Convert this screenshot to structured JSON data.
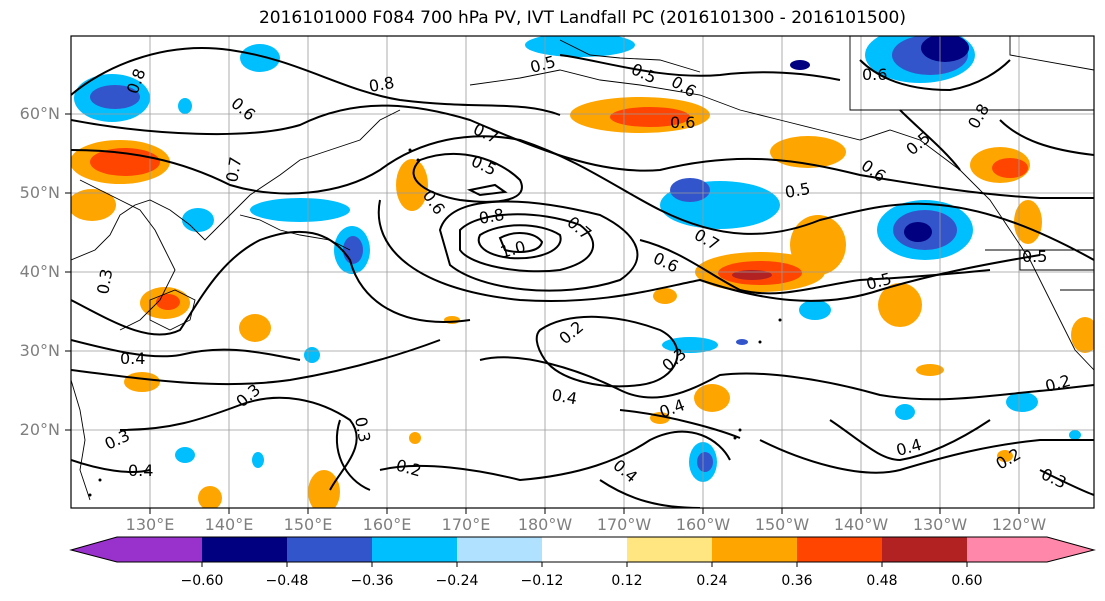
{
  "title": "2016101000 F084 700 hPa PV, IVT Landfall PC (2016101300 - 2016101500)",
  "lat_labels": [
    "60°N",
    "50°N",
    "40°N",
    "30°N",
    "20°N"
  ],
  "lon_labels": [
    "130°E",
    "140°E",
    "150°E",
    "160°E",
    "170°E",
    "180°W",
    "170°W",
    "160°W",
    "150°W",
    "140°W",
    "130°W",
    "120°W"
  ],
  "colorbar": {
    "colors": [
      "#9932cc",
      "#000080",
      "#3355cc",
      "#00bfff",
      "#b0e2ff",
      "#ffffff",
      "#ffffff",
      "#ffe680",
      "#ffa500",
      "#ff4500",
      "#b22222",
      "#ff88aa"
    ],
    "tick_labels": [
      "−0.60",
      "−0.48",
      "−0.36",
      "−0.24",
      "−0.12",
      "0.12",
      "0.24",
      "0.36",
      "0.48",
      "0.60"
    ]
  },
  "contour_labels": [
    "0.8",
    "0.6",
    "0.8",
    "0.5",
    "0.5",
    "0.6",
    "0.5",
    "0.6",
    "0.7",
    "0.6",
    "0.7",
    "0.5",
    "0.6",
    "0.5",
    "0.8",
    "0.7",
    "1.0",
    "0.6",
    "0.7",
    "0.5",
    "0.5",
    "0.3",
    "0.4",
    "0.4",
    "0.2",
    "0.3",
    "0.4",
    "0.4",
    "0.3",
    "0.3",
    "0.2",
    "0.3",
    "0.4",
    "0.2",
    "0.4",
    "0.2",
    "0.3",
    "0.8",
    "0.6"
  ]
}
